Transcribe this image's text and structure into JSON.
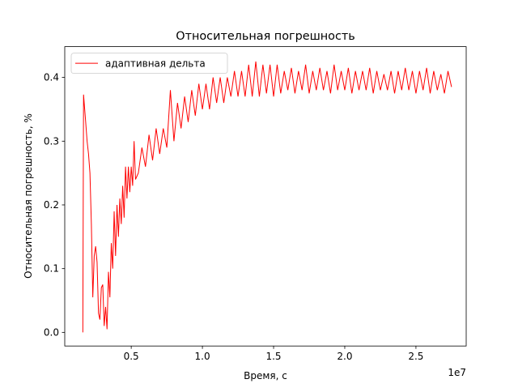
{
  "chart_data": {
    "type": "line",
    "title": "Относительная погрешность",
    "xlabel": "Время, с",
    "ylabel": "Относительная погрешность, %",
    "x_offset_label": "1e7",
    "legend": "upper left",
    "x": [
      1600000,
      1650000,
      1800000,
      1900000,
      2000000,
      2100000,
      2200000,
      2300000,
      2400000,
      2500000,
      2600000,
      2700000,
      2800000,
      2900000,
      3000000,
      3100000,
      3200000,
      3300000,
      3400000,
      3500000,
      3600000,
      3700000,
      3800000,
      3900000,
      4000000,
      4100000,
      4200000,
      4300000,
      4400000,
      4500000,
      4600000,
      4700000,
      4800000,
      4900000,
      5000000,
      5100000,
      5200000,
      5300000,
      5500000,
      5750000,
      6000000,
      6250000,
      6500000,
      6750000,
      7000000,
      7250000,
      7500000,
      7750000,
      8000000,
      8250000,
      8500000,
      8750000,
      9000000,
      9250000,
      9500000,
      9750000,
      10000000,
      10250000,
      10500000,
      10750000,
      11000000,
      11250000,
      11500000,
      11750000,
      12000000,
      12250000,
      12500000,
      12750000,
      13000000,
      13250000,
      13500000,
      13750000,
      14000000,
      14250000,
      14500000,
      14750000,
      15000000,
      15250000,
      15500000,
      15750000,
      16000000,
      16250000,
      16500000,
      16750000,
      17000000,
      17250000,
      17500000,
      17750000,
      18000000,
      18250000,
      18500000,
      18750000,
      19000000,
      19250000,
      19500000,
      19750000,
      20000000,
      20250000,
      20500000,
      20750000,
      21000000,
      21250000,
      21500000,
      21750000,
      22000000,
      22250000,
      22500000,
      22750000,
      23000000,
      23250000,
      23500000,
      23750000,
      24000000,
      24250000,
      24500000,
      24750000,
      25000000,
      25250000,
      25500000,
      25750000,
      26000000,
      26250000,
      26500000,
      26750000,
      27000000,
      27250000,
      27500000
    ],
    "series": [
      {
        "name": "адаптивная дельта",
        "color": "#ff0000",
        "values": [
          0,
          0.373,
          0.33,
          0.3,
          0.28,
          0.25,
          0.17,
          0.055,
          0.12,
          0.135,
          0.11,
          0.03,
          0.02,
          0.07,
          0.075,
          0.01,
          0.04,
          0.005,
          0.095,
          0.055,
          0.14,
          0.1,
          0.19,
          0.12,
          0.2,
          0.15,
          0.21,
          0.17,
          0.23,
          0.18,
          0.26,
          0.21,
          0.26,
          0.22,
          0.26,
          0.23,
          0.3,
          0.24,
          0.25,
          0.29,
          0.26,
          0.31,
          0.27,
          0.32,
          0.28,
          0.32,
          0.29,
          0.38,
          0.3,
          0.36,
          0.32,
          0.37,
          0.33,
          0.38,
          0.34,
          0.39,
          0.35,
          0.39,
          0.35,
          0.4,
          0.36,
          0.4,
          0.36,
          0.4,
          0.37,
          0.41,
          0.37,
          0.41,
          0.37,
          0.42,
          0.37,
          0.425,
          0.37,
          0.42,
          0.375,
          0.42,
          0.37,
          0.42,
          0.375,
          0.41,
          0.38,
          0.415,
          0.375,
          0.41,
          0.38,
          0.42,
          0.375,
          0.41,
          0.38,
          0.415,
          0.38,
          0.41,
          0.375,
          0.42,
          0.38,
          0.41,
          0.38,
          0.415,
          0.375,
          0.41,
          0.38,
          0.41,
          0.38,
          0.415,
          0.375,
          0.41,
          0.38,
          0.405,
          0.38,
          0.41,
          0.375,
          0.41,
          0.38,
          0.415,
          0.38,
          0.41,
          0.375,
          0.41,
          0.38,
          0.415,
          0.375,
          0.41,
          0.38,
          0.405,
          0.375,
          0.41,
          0.385
        ]
      }
    ],
    "xlim": [
      330000,
      28530000
    ],
    "xticks": [
      {
        "value": 5000000,
        "label": "0.5"
      },
      {
        "value": 10000000,
        "label": "1.0"
      },
      {
        "value": 15000000,
        "label": "1.5"
      },
      {
        "value": 20000000,
        "label": "2.0"
      },
      {
        "value": 25000000,
        "label": "2.5"
      }
    ],
    "ylim": [
      -0.0214,
      0.4483
    ],
    "yticks": [
      {
        "value": 0,
        "label": "0.0"
      },
      0.1,
      0.2,
      0.3,
      0.4
    ]
  }
}
